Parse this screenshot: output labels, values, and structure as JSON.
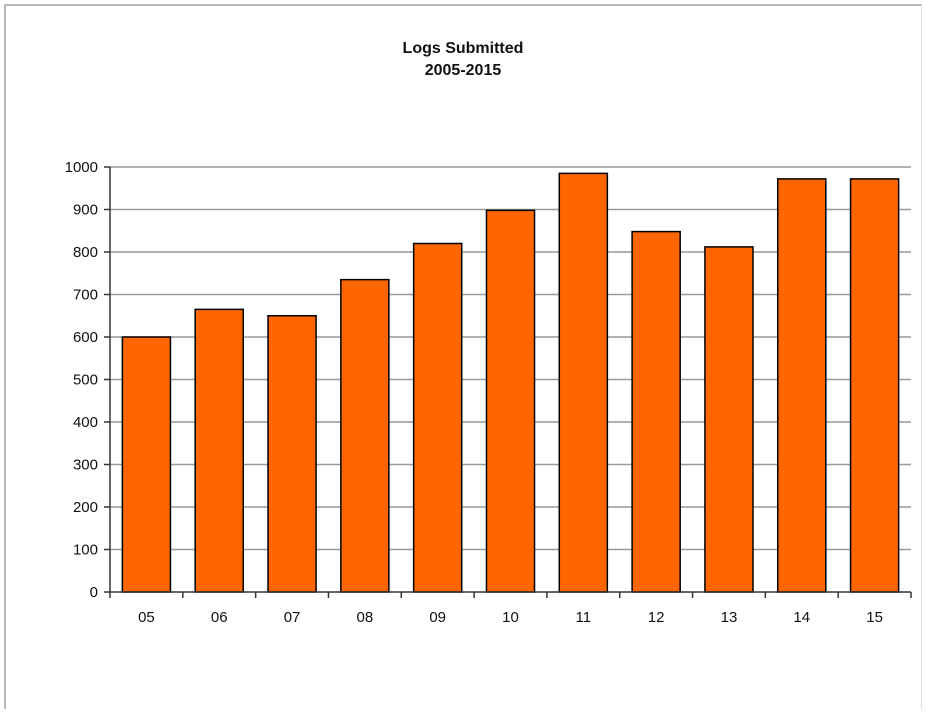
{
  "chart_data": {
    "type": "bar",
    "title": "Logs Submitted",
    "subtitle": "2005-2015",
    "categories": [
      "05",
      "06",
      "07",
      "08",
      "09",
      "10",
      "11",
      "12",
      "13",
      "14",
      "15"
    ],
    "values": [
      600,
      665,
      650,
      735,
      820,
      898,
      985,
      848,
      812,
      972,
      972
    ],
    "ylim": [
      0,
      1000
    ],
    "yticks": [
      0,
      100,
      200,
      300,
      400,
      500,
      600,
      700,
      800,
      900,
      1000
    ],
    "grid": true,
    "bar_color": "#ff6600",
    "bar_edge_color": "#000000"
  }
}
